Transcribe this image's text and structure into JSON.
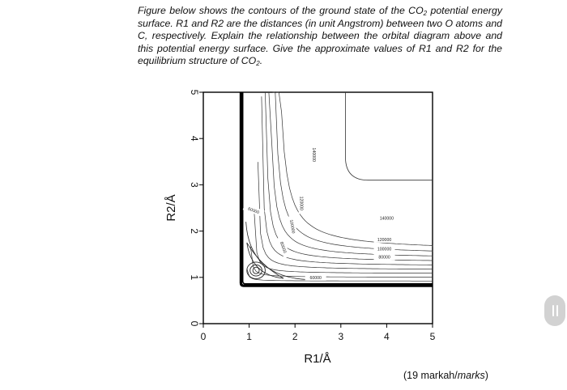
{
  "question": {
    "part1": "Figure below shows the contours of the ground state of the CO",
    "sub1": "2",
    "part2": " potential energy surface. R1 and R2 are the distances (in unit Angstrom) between two O atoms and C, respectively. Explain the relationship between the orbital diagram above and this potential energy surface. Give the approximate values of R1 and R2 for the equilibrium structure of CO",
    "sub2": "2",
    "part3": "."
  },
  "marks": {
    "prefix": "(19 markah/",
    "italic": "marks",
    "suffix": ")"
  },
  "side_handle_icon": "drag-handle-icon",
  "chart_data": {
    "type": "contour",
    "xlabel": "R1/Å",
    "ylabel": "R2/Å",
    "xlim": [
      0,
      5
    ],
    "ylim": [
      0,
      5
    ],
    "xticks": [
      "0",
      "1",
      "2",
      "3",
      "4",
      "5"
    ],
    "yticks": [
      "0",
      "1",
      "2",
      "3",
      "4",
      "5"
    ],
    "grid": false,
    "minimum": {
      "R1": 1.15,
      "R2": 1.15
    },
    "contour_labels": [
      "140000",
      "120000",
      "100000",
      "80000",
      "60000",
      "140000",
      "120000",
      "100000",
      "80000",
      "60000"
    ]
  }
}
